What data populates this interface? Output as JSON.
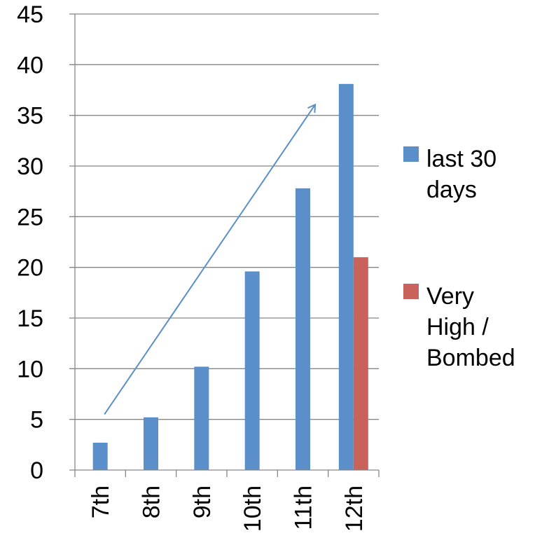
{
  "chart_data": {
    "type": "bar",
    "categories": [
      "7th",
      "8th",
      "9th",
      "10th",
      "11th",
      "12th"
    ],
    "series": [
      {
        "name_lines": [
          "last 30",
          "days"
        ],
        "color": "#5b8fc9",
        "values": [
          2.7,
          5.2,
          10.2,
          19.6,
          27.8,
          38.1
        ]
      },
      {
        "name_lines": [
          "Very",
          "High  /",
          "Bombed"
        ],
        "color": "#c9625b",
        "values": [
          null,
          null,
          null,
          null,
          null,
          21.0
        ]
      }
    ],
    "y_ticks": [
      "0",
      "5",
      "10",
      "15",
      "20",
      "25",
      "30",
      "35",
      "40",
      "45"
    ],
    "ylim": [
      0,
      45
    ],
    "grid": true,
    "legend": "right",
    "annotation": {
      "type": "trend-arrow",
      "color": "#5b8fc9",
      "from": {
        "category": "7th",
        "y": 5.5
      },
      "to": {
        "category": "11th",
        "y": 36
      }
    }
  }
}
